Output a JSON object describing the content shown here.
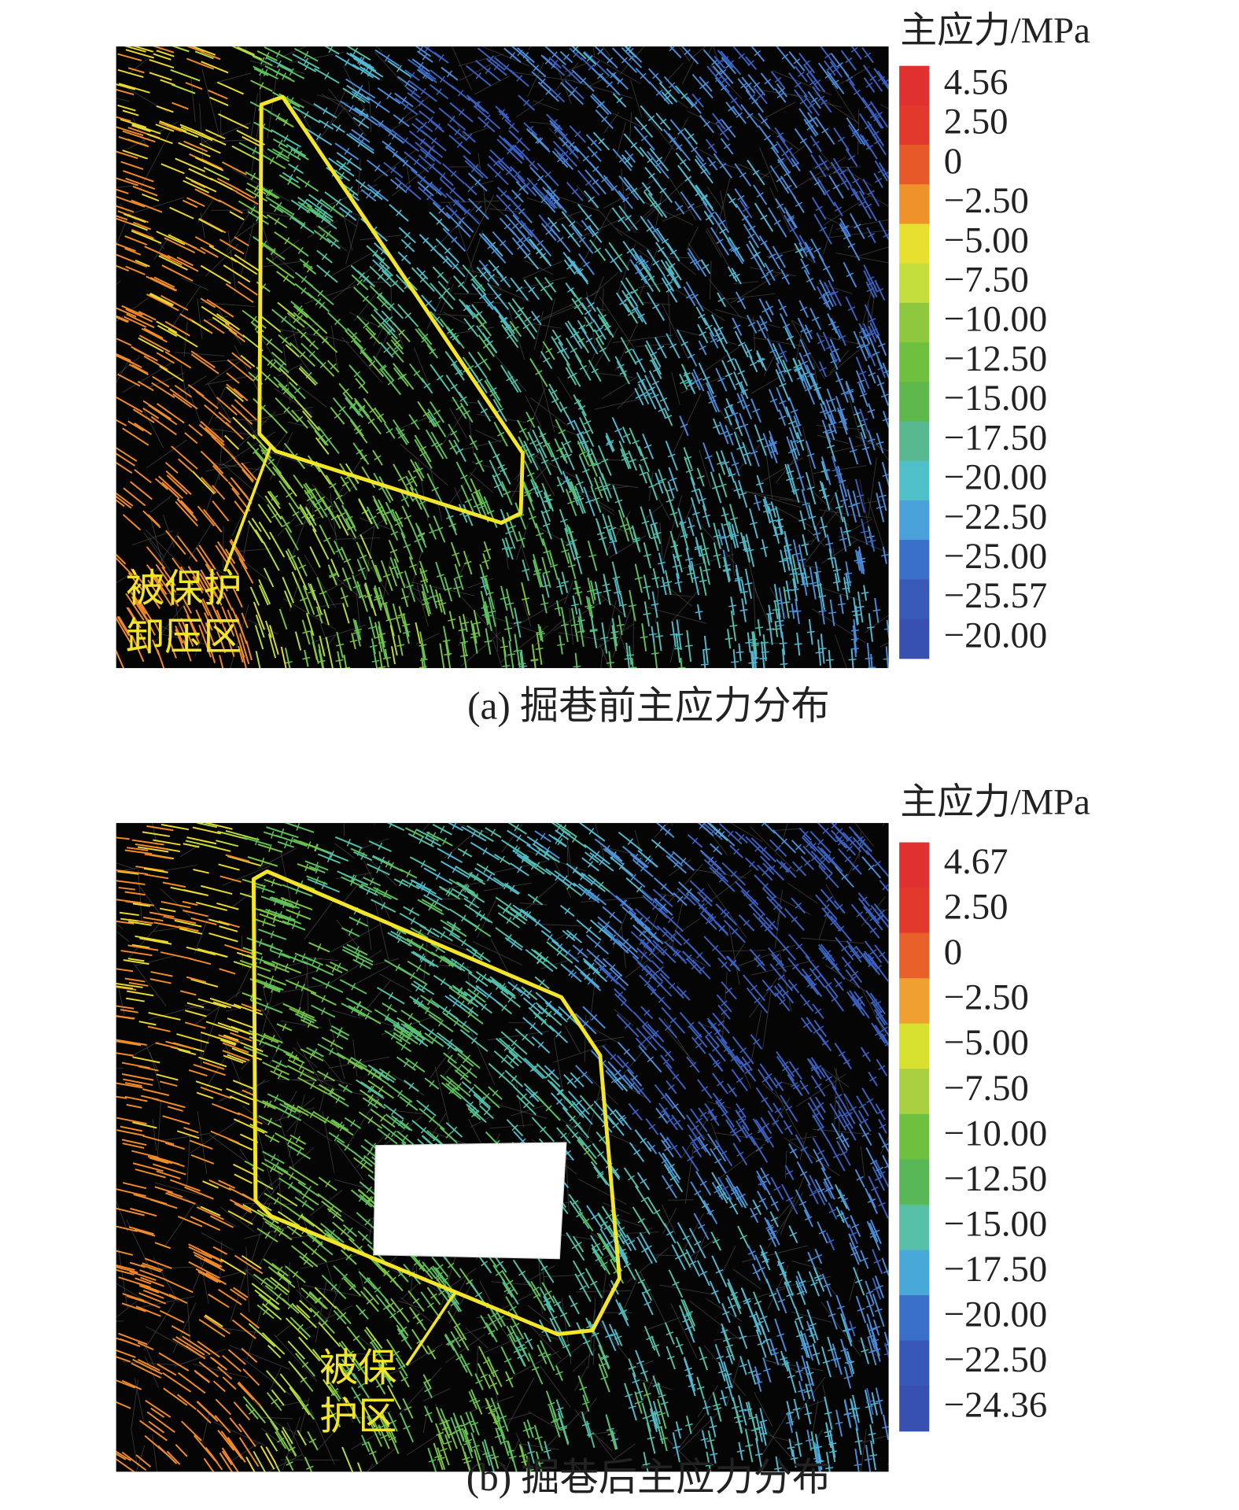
{
  "panels": [
    {
      "caption": "(a) 掘巷前主应力分布",
      "annotation": [
        "被保护",
        "卸压区"
      ],
      "legend": {
        "title": "主应力/MPa",
        "labels": [
          "4.56",
          "2.50",
          "0",
          "−2.50",
          "−5.00",
          "−7.50",
          "−10.00",
          "−12.50",
          "−15.00",
          "−17.50",
          "−20.00",
          "−22.50",
          "−25.00",
          "−25.57",
          "−20.00"
        ],
        "colors": [
          "#e03030",
          "#e3392c",
          "#e8592a",
          "#f0922a",
          "#e8e030",
          "#c4de3e",
          "#8ec83e",
          "#70c040",
          "#5eb84c",
          "#58b890",
          "#50c0c8",
          "#4aa0d8",
          "#3a70c8",
          "#3a5ab8",
          "#3850b0"
        ]
      }
    },
    {
      "caption": "(b) 掘巷后主应力分布",
      "annotation": [
        "被保",
        "护区"
      ],
      "legend": {
        "title": "主应力/MPa",
        "labels": [
          "4.67",
          "2.50",
          "0",
          "−2.50",
          "−5.00",
          "−7.50",
          "−10.00",
          "−12.50",
          "−15.00",
          "−17.50",
          "−20.00",
          "−22.50",
          "−24.36"
        ],
        "colors": [
          "#e03030",
          "#e3392c",
          "#e8602a",
          "#f0a030",
          "#d8e030",
          "#a8d040",
          "#70c040",
          "#58b858",
          "#58c0a8",
          "#48a8d8",
          "#3a70c8",
          "#3858b8",
          "#3850b0"
        ]
      }
    }
  ]
}
